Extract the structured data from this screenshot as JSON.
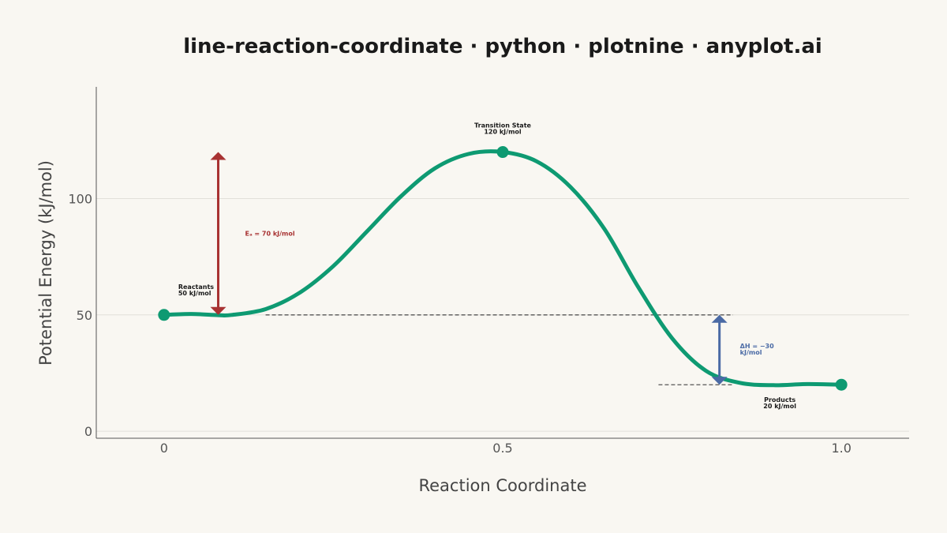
{
  "chart_data": {
    "type": "line",
    "title": "line-reaction-coordinate · python · plotnine · anyplot.ai",
    "xlabel": "Reaction Coordinate",
    "ylabel": "Potential Energy (kJ/mol)",
    "xlim": [
      -0.1,
      1.1
    ],
    "ylim": [
      -3,
      148
    ],
    "x_ticks": [
      0,
      0.5,
      1.0
    ],
    "x_tick_labels": [
      "0",
      "0.5",
      "1.0"
    ],
    "y_ticks": [
      0,
      50,
      100
    ],
    "y_tick_labels": [
      "0",
      "50",
      "100"
    ],
    "grid": "horizontal",
    "series": [
      {
        "color": "#0e9a72",
        "x": [
          0,
          0.04,
          0.08,
          0.1,
          0.15,
          0.2,
          0.25,
          0.3,
          0.35,
          0.4,
          0.45,
          0.5,
          0.55,
          0.6,
          0.65,
          0.7,
          0.75,
          0.8,
          0.85,
          0.9,
          0.95,
          1.0
        ],
        "y": [
          50,
          50.4,
          49.9,
          50,
          52.5,
          59.5,
          71,
          86,
          101,
          113,
          119.2,
          120,
          116,
          105,
          87,
          62,
          40,
          26,
          20.8,
          19.8,
          20.3,
          20
        ]
      }
    ],
    "key_points": [
      {
        "x": 0,
        "y": 50,
        "label": [
          "Reactants",
          "50 kJ/mol"
        ]
      },
      {
        "x": 0.5,
        "y": 120,
        "label": [
          "Transition State",
          "120 kJ/mol"
        ]
      },
      {
        "x": 1.0,
        "y": 20,
        "label": [
          "Products",
          "20 kJ/mol"
        ]
      }
    ],
    "reference_lines": [
      {
        "y": 50,
        "x_from": 0.15,
        "x_to": 0.84
      },
      {
        "y": 20,
        "x_from": 0.73,
        "x_to": 0.84
      }
    ],
    "annotations": [
      {
        "kind": "double-arrow",
        "x": 0.08,
        "y_from": 50,
        "y_to": 120,
        "color": "#a83232",
        "label": [
          "Eₐ = 70 kJ/mol"
        ]
      },
      {
        "kind": "double-arrow",
        "x": 0.82,
        "y_from": 50,
        "y_to": 20,
        "color": "#4a6aa5",
        "label": [
          "ΔH = −30",
          "kJ/mol"
        ]
      }
    ]
  }
}
